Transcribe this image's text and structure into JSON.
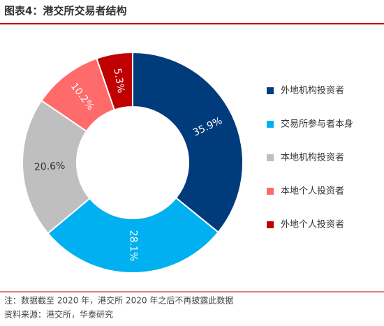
{
  "chart_data": {
    "type": "donut",
    "title": "图表4：港交所交易者结构",
    "categories": [
      "外地机构投资者",
      "交易所参与者本身",
      "本地机构投资者",
      "本地个人投资者",
      "外地个人投资者"
    ],
    "values": [
      35.9,
      28.1,
      20.6,
      10.2,
      5.3
    ],
    "value_labels": [
      "35.9%",
      "28.1%",
      "20.6%",
      "10.2%",
      "5.3%"
    ],
    "colors": [
      "#003B7C",
      "#00B0F0",
      "#BFBFBF",
      "#FF6B6B",
      "#C00000"
    ],
    "legend": "right",
    "notes": [
      "注：数据截至 2020 年，港交所 2020 年之后不再披露此数据",
      "资料来源：港交所，华泰研究"
    ]
  }
}
